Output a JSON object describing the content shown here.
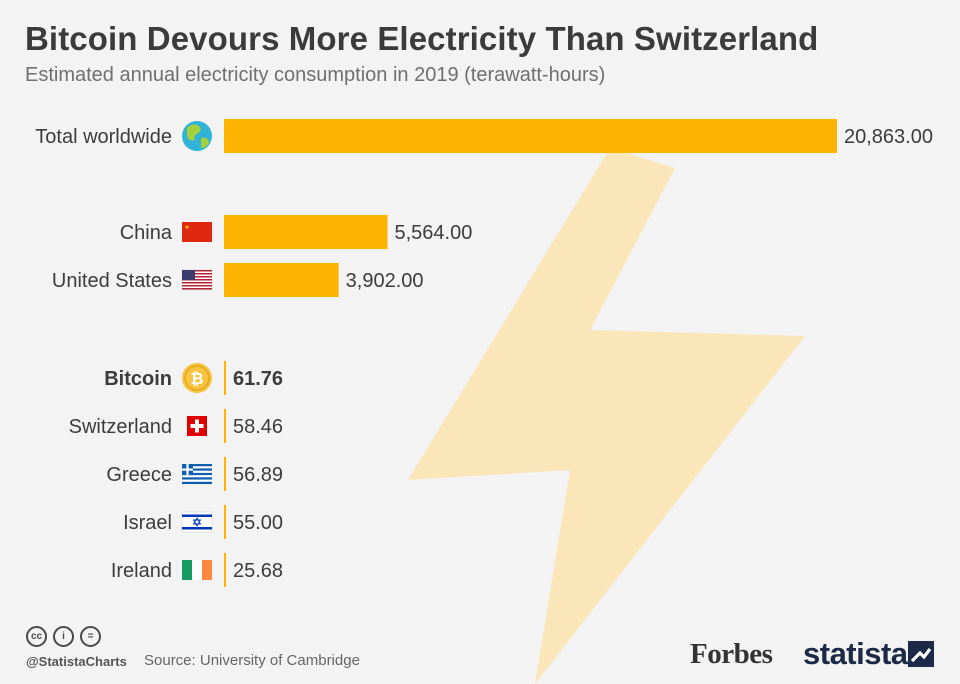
{
  "header": {
    "title": "Bitcoin Devours More Electricity Than Switzerland",
    "subtitle": "Estimated annual electricity consumption in 2019 (terawatt-hours)"
  },
  "colors": {
    "bar": "#fdb400",
    "bolt": "#fbe6b9",
    "background": "#f3f3f3"
  },
  "chart_data": {
    "type": "bar",
    "orientation": "horizontal",
    "title": "Bitcoin Devours More Electricity Than Switzerland",
    "subtitle": "Estimated annual electricity consumption in 2019 (terawatt-hours)",
    "xlim": [
      0,
      20863
    ],
    "grid": false,
    "categories": [
      "Total worldwide",
      "China",
      "United States",
      "Bitcoin",
      "Switzerland",
      "Greece",
      "Israel",
      "Ireland"
    ],
    "values": [
      20863.0,
      5564.0,
      3902.0,
      61.76,
      58.46,
      56.89,
      55.0,
      25.68
    ],
    "value_labels": [
      "20,863.00",
      "5,564.00",
      "3,902.00",
      "61.76",
      "58.46",
      "56.89",
      "55.00",
      "25.68"
    ],
    "icons": [
      "globe-icon",
      "flag-china-icon",
      "flag-usa-icon",
      "bitcoin-icon",
      "flag-switzerland-icon",
      "flag-greece-icon",
      "flag-israel-icon",
      "flag-ireland-icon"
    ],
    "highlight": "Bitcoin"
  },
  "footer": {
    "handle": "@StatistaCharts",
    "source": "Source: University of Cambridge",
    "brand_forbes": "Forbes",
    "brand_statista": "statista",
    "license_icons": [
      "cc-icon",
      "attribution-icon",
      "no-derivatives-icon"
    ],
    "license_glyphs": [
      "cc",
      "i",
      "="
    ]
  }
}
